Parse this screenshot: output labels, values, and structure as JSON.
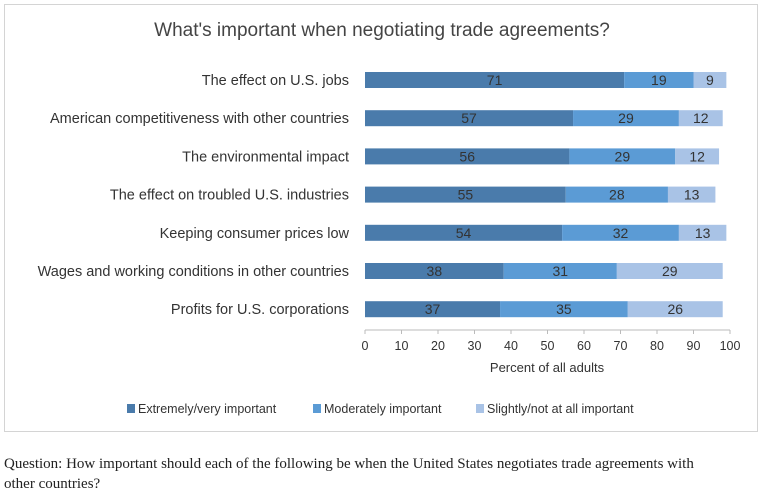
{
  "chart_data": {
    "type": "bar",
    "stacked": true,
    "orientation": "horizontal",
    "title": "What's important when negotiating trade agreements?",
    "xlabel": "Percent of all adults",
    "ylabel": "",
    "xlim": [
      0,
      100
    ],
    "xticks": [
      "0",
      "10",
      "20",
      "30",
      "40",
      "50",
      "60",
      "70",
      "80",
      "90",
      "100"
    ],
    "categories": [
      "The effect on U.S. jobs",
      "American competitiveness with other countries",
      "The environmental impact",
      "The effect on troubled U.S. industries",
      "Keeping consumer prices low",
      "Wages and working conditions in other countries",
      "Profits for U.S. corporations"
    ],
    "series": [
      {
        "name": "Extremely/very important",
        "color": "#4a7bab",
        "values": [
          71,
          57,
          56,
          55,
          54,
          38,
          37
        ]
      },
      {
        "name": "Moderately important",
        "color": "#5b9bd5",
        "values": [
          19,
          29,
          29,
          28,
          32,
          31,
          35
        ]
      },
      {
        "name": "Slightly/not at all important",
        "color": "#a9c3e6",
        "values": [
          9,
          12,
          12,
          13,
          13,
          29,
          26
        ]
      }
    ],
    "legend_position": "bottom",
    "grid": false
  },
  "question": "Question: How important should each of the following be when the United States negotiates trade agreements with other countries?"
}
